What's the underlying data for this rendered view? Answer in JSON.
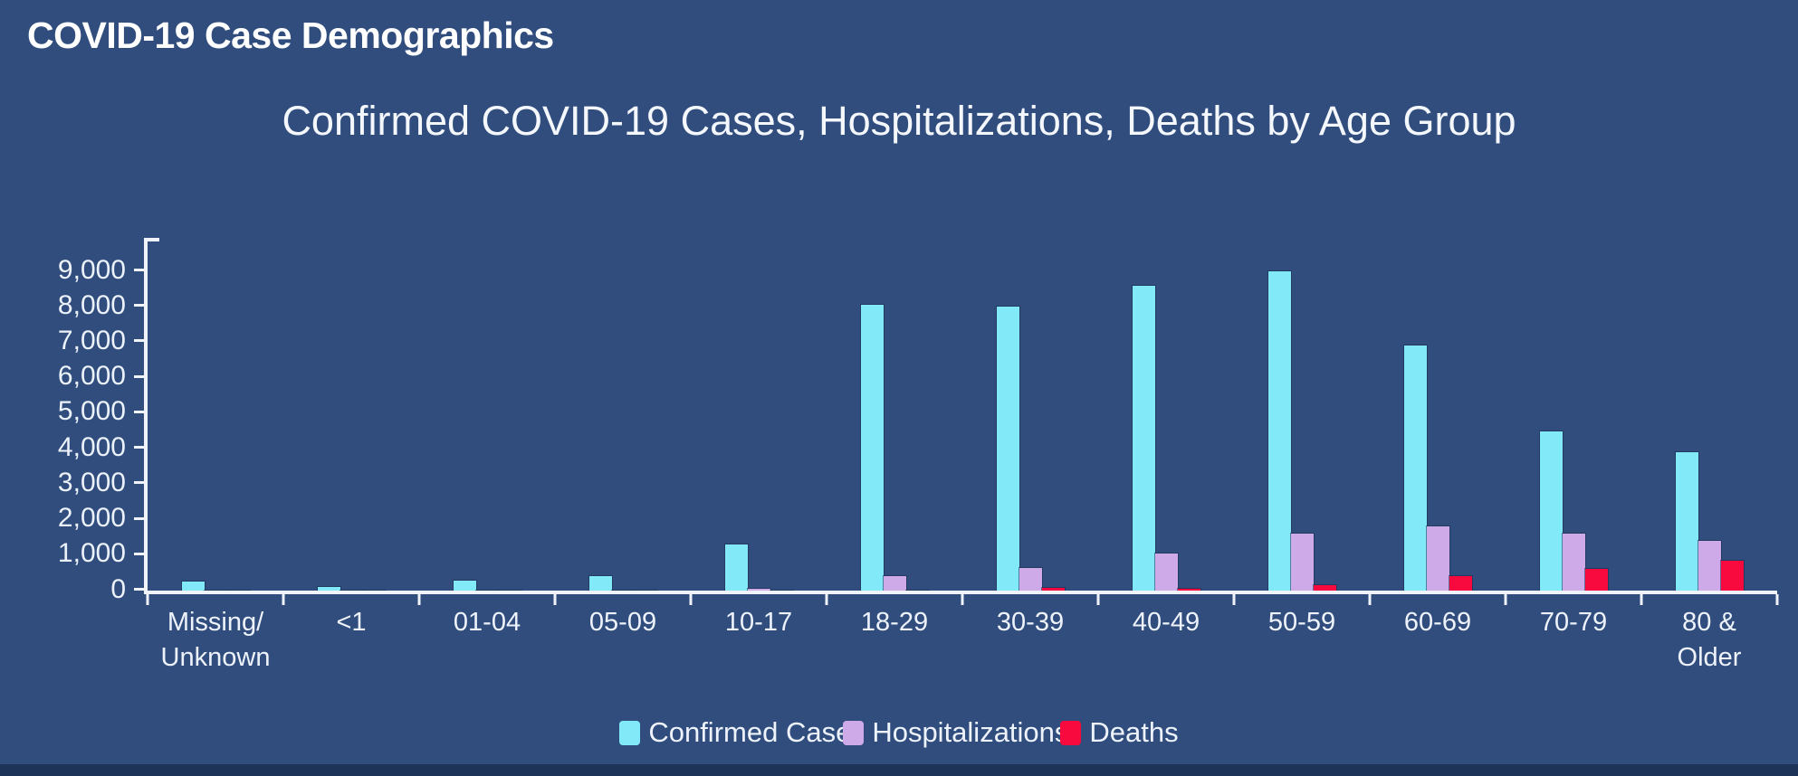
{
  "page": {
    "title": "COVID-19 Case Demographics"
  },
  "chart_data": {
    "type": "bar",
    "title": "Confirmed COVID-19 Cases, Hospitalizations, Deaths by Age Group",
    "xlabel": "",
    "ylabel": "",
    "categories": [
      "Missing/\nUnknown",
      "<1",
      "01-04",
      "05-09",
      "10-17",
      "18-29",
      "30-39",
      "40-49",
      "50-59",
      "60-69",
      "70-79",
      "80 &\nOlder"
    ],
    "series": [
      {
        "name": "Confirmed Cases",
        "legend_label": "Confirmed Case",
        "color": "#82e9f9",
        "values": [
          250,
          100,
          280,
          400,
          1300,
          8050,
          8000,
          8600,
          9000,
          6900,
          4500,
          3900
        ]
      },
      {
        "name": "Hospitalizations",
        "legend_label": "Hospitalizations",
        "color": "#cfaae8",
        "values": [
          0,
          0,
          0,
          0,
          50,
          400,
          650,
          1050,
          1600,
          1800,
          1600,
          1400
        ]
      },
      {
        "name": "Deaths",
        "legend_label": "Deaths",
        "color": "#f80a3e",
        "values": [
          0,
          0,
          0,
          0,
          0,
          10,
          80,
          60,
          150,
          400,
          600,
          850
        ]
      }
    ],
    "ylim": [
      0,
      9000
    ],
    "yticks": {
      "values": [
        0,
        1000,
        2000,
        3000,
        4000,
        5000,
        6000,
        7000,
        8000,
        9000
      ],
      "labels": [
        "0",
        "1,000",
        "2,000",
        "3,000",
        "4,000",
        "5,000",
        "6,000",
        "7,000",
        "8,000",
        "9,000"
      ]
    },
    "grid": false,
    "legend_position": "bottom",
    "colors": {
      "background": "#304d7d",
      "bottom_strip": "#1e3358",
      "axis": "#f0f4fa",
      "text": "#eef3fb"
    }
  }
}
